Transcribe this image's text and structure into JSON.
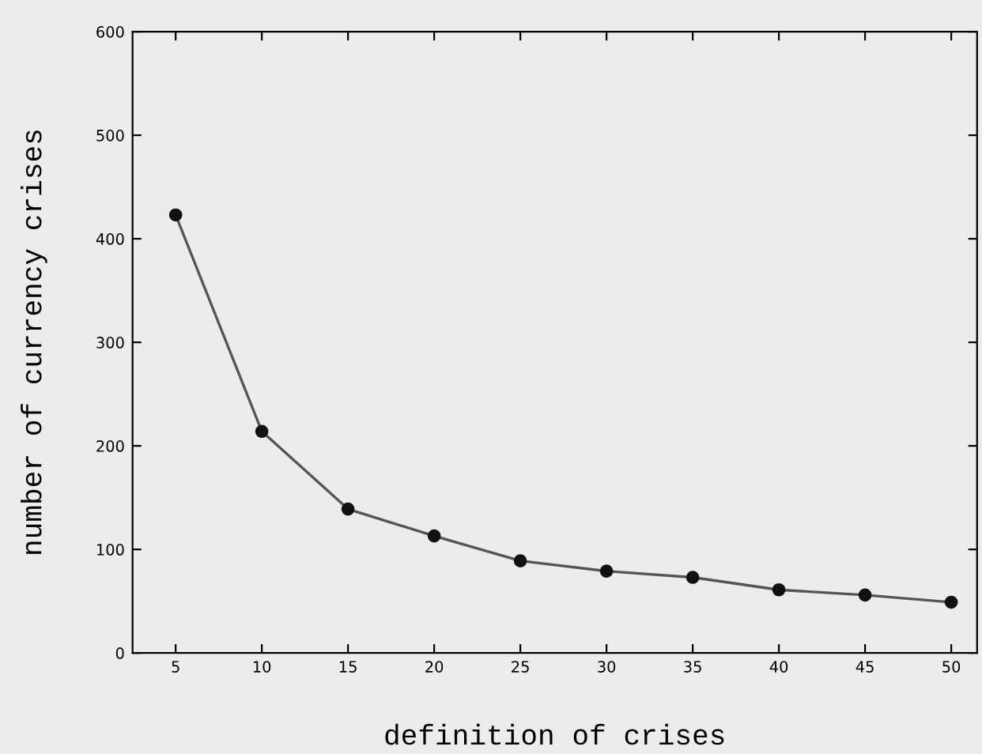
{
  "chart_data": {
    "type": "line",
    "xlabel": "definition of crises",
    "ylabel": "number of currency crises",
    "x": [
      5,
      10,
      15,
      20,
      25,
      30,
      35,
      40,
      45,
      50
    ],
    "series": [
      {
        "color": "#555555",
        "values": [
          423,
          214,
          139,
          113,
          89,
          79,
          73,
          61,
          56,
          49
        ]
      }
    ],
    "xlim": [
      2.5,
      51.5
    ],
    "xticks": [
      5,
      10,
      15,
      20,
      25,
      30,
      35,
      40,
      45,
      50
    ],
    "ylim": [
      0,
      600
    ],
    "yticks": [
      0,
      100,
      200,
      300,
      400,
      500,
      600
    ],
    "marker": "circle",
    "line_style": "solid",
    "grid": false,
    "legend": false
  }
}
